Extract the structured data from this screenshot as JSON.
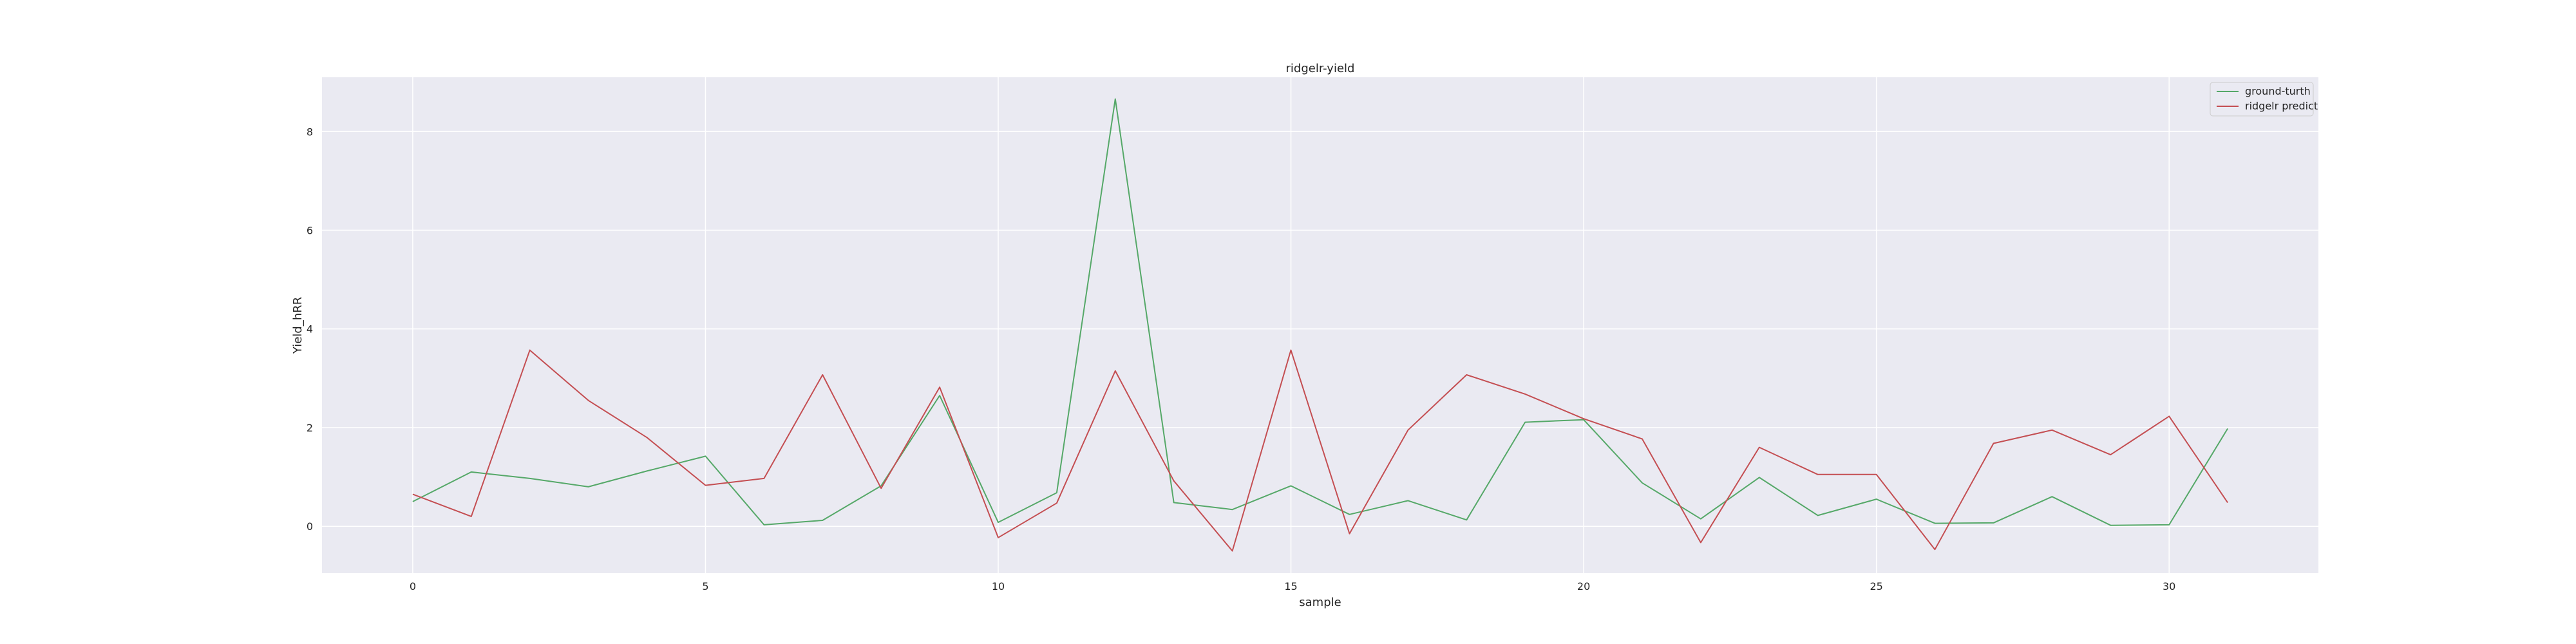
{
  "chart_data": {
    "type": "line",
    "title": "ridgelr-yield",
    "xlabel": "sample",
    "ylabel": "Yield_hRR",
    "xlim": [
      -1.55,
      32.55
    ],
    "ylim": [
      -0.95,
      9.1
    ],
    "xticks": [
      0,
      5,
      10,
      15,
      20,
      25,
      30
    ],
    "yticks": [
      0,
      2,
      4,
      6,
      8
    ],
    "grid": true,
    "legend_position": "top-right",
    "x": [
      0,
      1,
      2,
      3,
      4,
      5,
      6,
      7,
      8,
      9,
      10,
      11,
      12,
      13,
      14,
      15,
      16,
      17,
      18,
      19,
      20,
      21,
      22,
      23,
      24,
      25,
      26,
      27,
      28,
      29,
      30,
      31
    ],
    "series": [
      {
        "name": "ground-turth",
        "color": "#55a868",
        "values": [
          0.5,
          1.1,
          0.97,
          0.8,
          1.12,
          1.42,
          0.03,
          0.12,
          0.82,
          2.65,
          0.08,
          0.68,
          8.66,
          0.48,
          0.34,
          0.82,
          0.24,
          0.52,
          0.13,
          2.11,
          2.16,
          0.88,
          0.15,
          0.99,
          0.22,
          0.55,
          0.06,
          0.07,
          0.6,
          0.02,
          0.03,
          1.98
        ]
      },
      {
        "name": "ridgelr predict",
        "color": "#c44e52",
        "values": [
          0.65,
          0.2,
          3.57,
          2.55,
          1.8,
          0.83,
          0.97,
          3.07,
          0.77,
          2.82,
          -0.23,
          0.47,
          3.15,
          0.92,
          -0.5,
          3.57,
          -0.15,
          1.95,
          3.07,
          2.68,
          2.18,
          1.77,
          -0.33,
          1.6,
          1.05,
          1.05,
          -0.47,
          1.68,
          1.95,
          1.45,
          2.23,
          0.48
        ]
      }
    ]
  }
}
